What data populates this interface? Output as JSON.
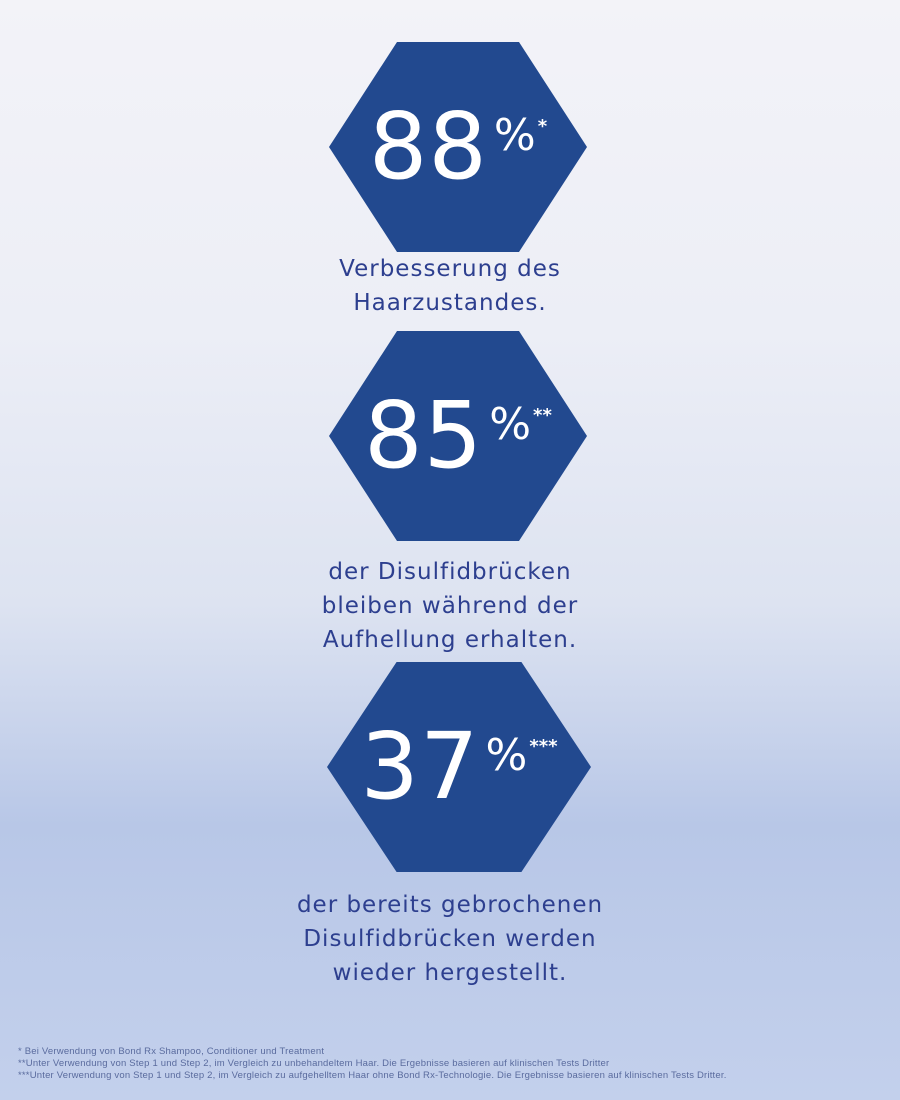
{
  "colors": {
    "hexagon_fill": "#22498f",
    "caption_text": "#2d3f8f",
    "number_text": "#ffffff"
  },
  "stats": [
    {
      "number": "88",
      "percent": "%",
      "marker": "*",
      "caption": [
        "Verbesserung des",
        "Haarzustandes."
      ]
    },
    {
      "number": "85",
      "percent": "%",
      "marker": "**",
      "caption": [
        "der Disulfidbrücken",
        "bleiben während der",
        "Aufhellung erhalten."
      ]
    },
    {
      "number": "37",
      "percent": "%",
      "marker": "***",
      "caption": [
        "der bereits gebrochenen",
        "Disulfidbrücken werden",
        "wieder hergestellt."
      ]
    }
  ],
  "footnotes": [
    "* Bei Verwendung von Bond Rx Shampoo, Conditioner und Treatment",
    "**Unter Verwendung von Step 1 und Step 2, im Vergleich zu unbehandeltem Haar. Die Ergebnisse basieren auf klinischen Tests Dritter",
    "***Unter Verwendung von Step 1 und Step 2, im Vergleich zu aufgehelltem Haar ohne Bond Rx-Technologie. Die Ergebnisse basieren auf klinischen Tests Dritter."
  ]
}
